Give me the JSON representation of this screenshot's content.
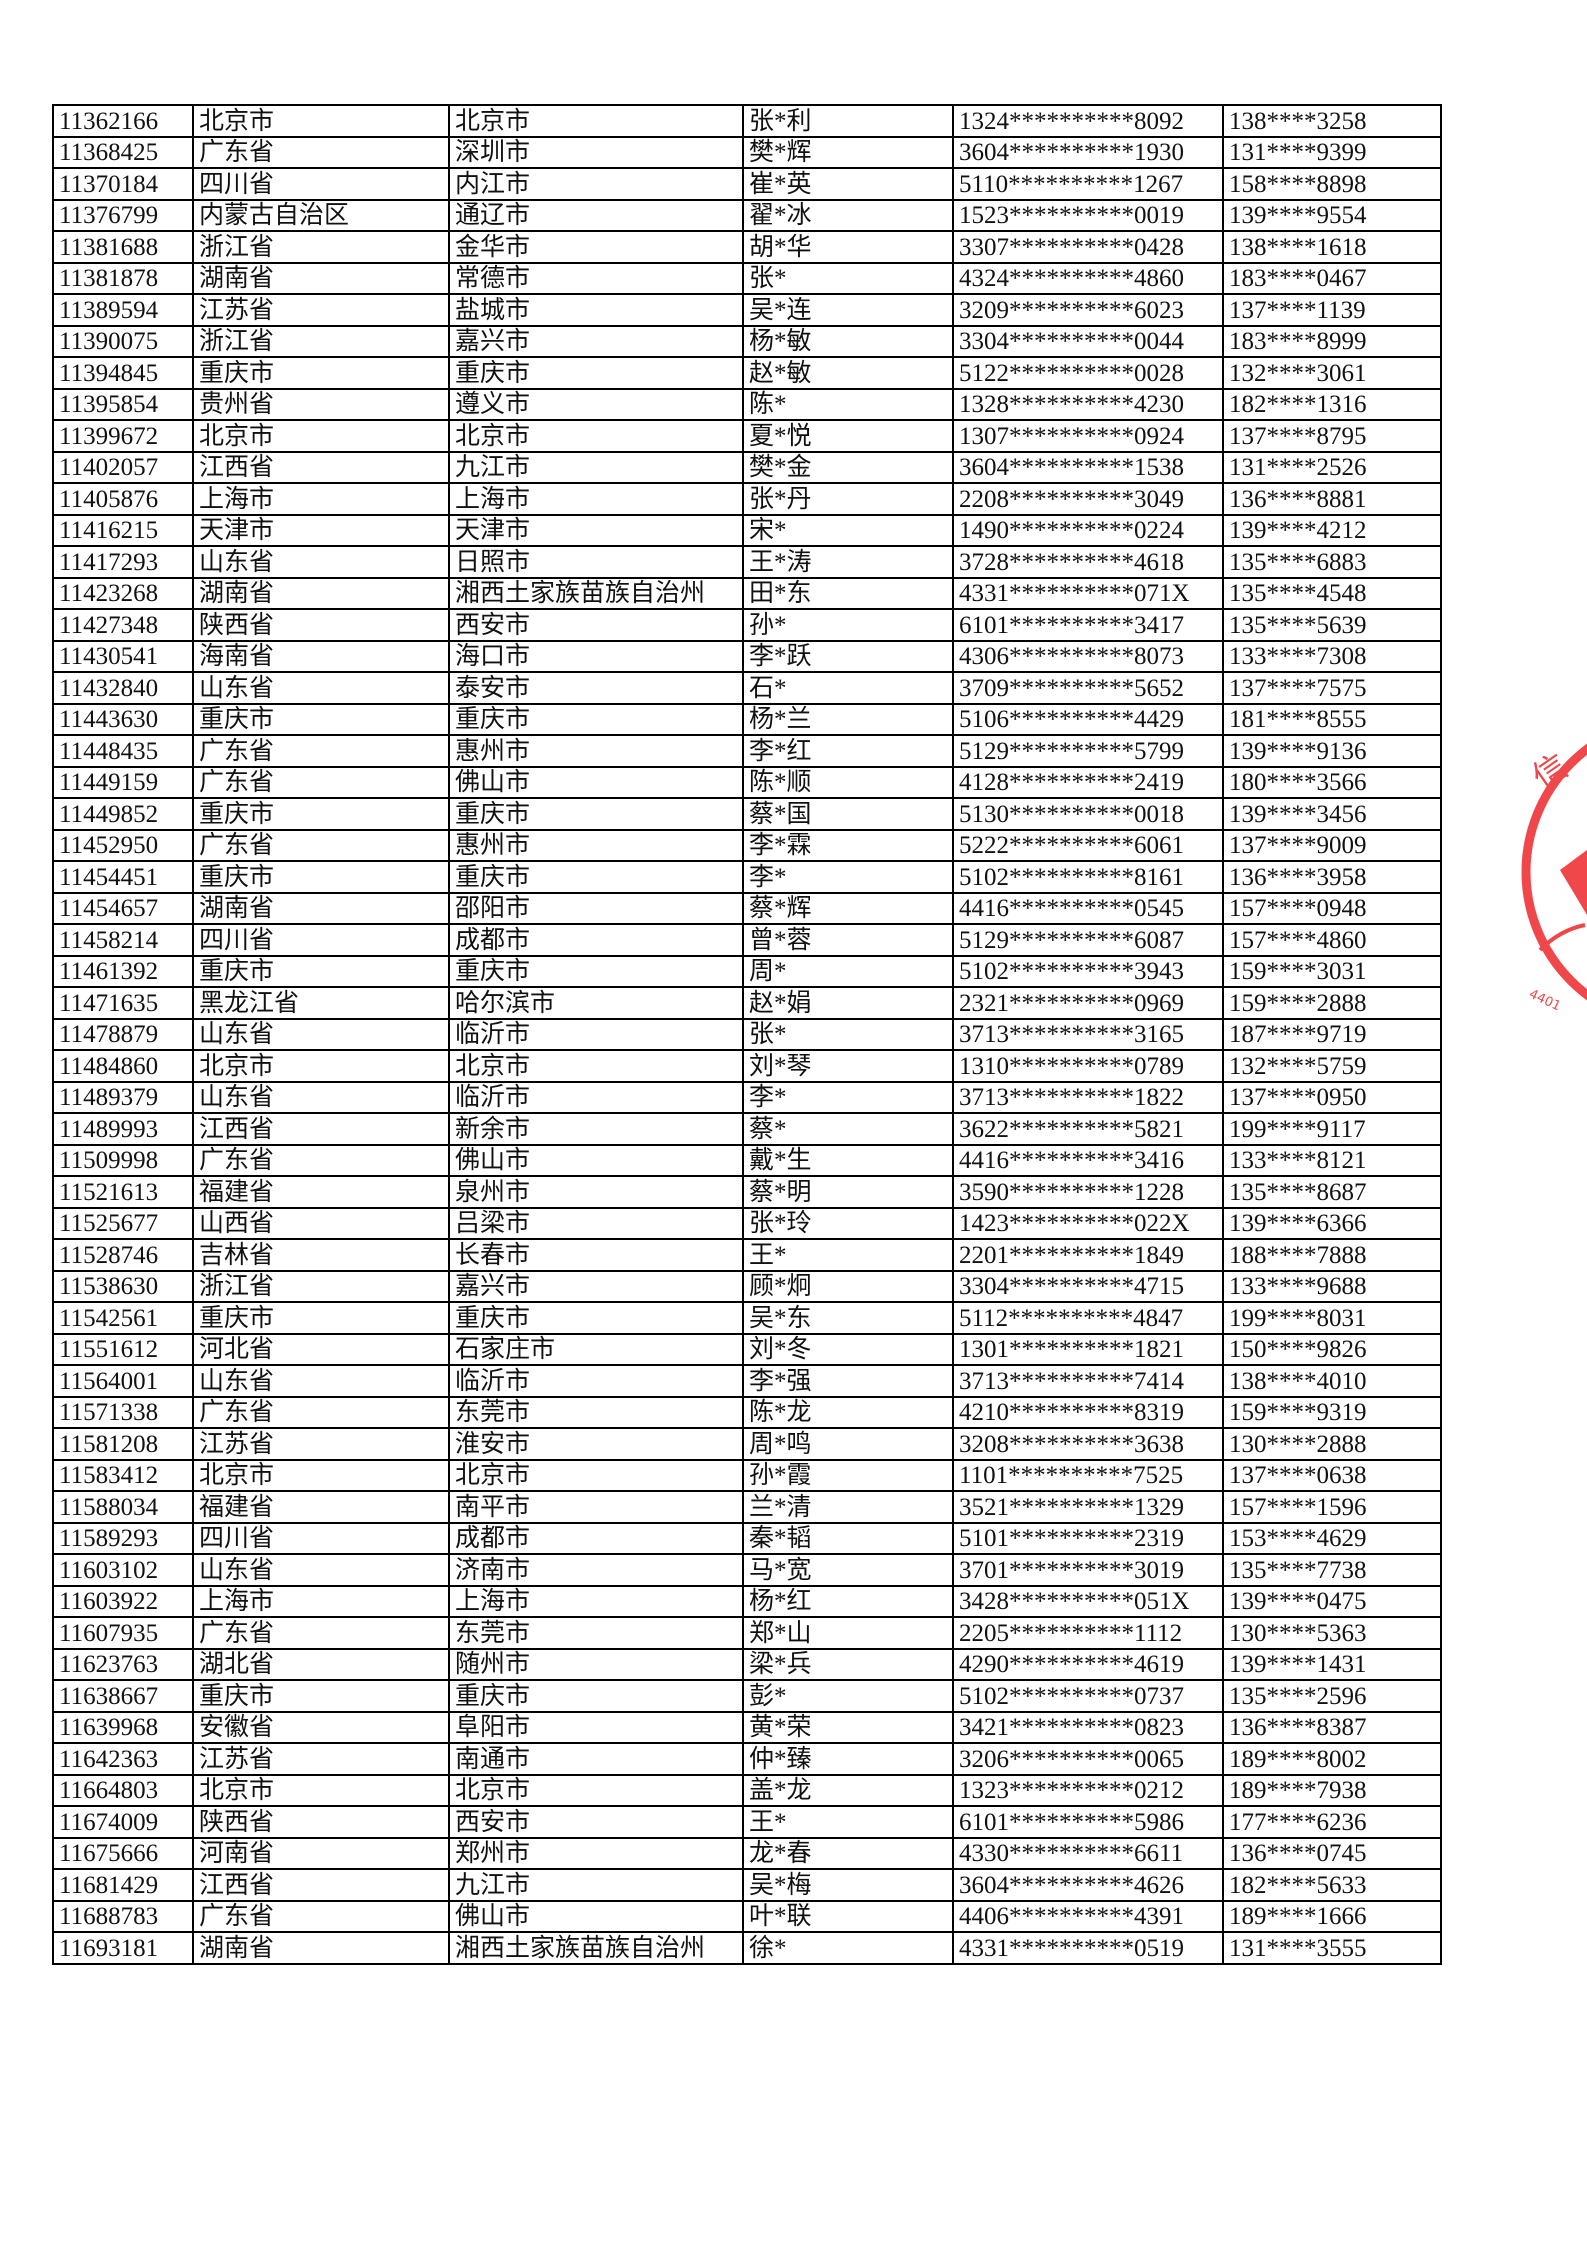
{
  "stamp": {
    "color": "#f0474a",
    "visible_text": [
      "信",
      "4401"
    ]
  },
  "rows": [
    [
      "11362166",
      "北京市",
      "北京市",
      "张*利",
      "1324**********8092",
      "138****3258"
    ],
    [
      "11368425",
      "广东省",
      "深圳市",
      "樊*辉",
      "3604**********1930",
      "131****9399"
    ],
    [
      "11370184",
      "四川省",
      "内江市",
      "崔*英",
      "5110**********1267",
      "158****8898"
    ],
    [
      "11376799",
      "内蒙古自治区",
      "通辽市",
      "翟*冰",
      "1523**********0019",
      "139****9554"
    ],
    [
      "11381688",
      "浙江省",
      "金华市",
      "胡*华",
      "3307**********0428",
      "138****1618"
    ],
    [
      "11381878",
      "湖南省",
      "常德市",
      "张*",
      "4324**********4860",
      "183****0467"
    ],
    [
      "11389594",
      "江苏省",
      "盐城市",
      "吴*连",
      "3209**********6023",
      "137****1139"
    ],
    [
      "11390075",
      "浙江省",
      "嘉兴市",
      "杨*敏",
      "3304**********0044",
      "183****8999"
    ],
    [
      "11394845",
      "重庆市",
      "重庆市",
      "赵*敏",
      "5122**********0028",
      "132****3061"
    ],
    [
      "11395854",
      "贵州省",
      "遵义市",
      "陈*",
      "1328**********4230",
      "182****1316"
    ],
    [
      "11399672",
      "北京市",
      "北京市",
      "夏*悦",
      "1307**********0924",
      "137****8795"
    ],
    [
      "11402057",
      "江西省",
      "九江市",
      "樊*金",
      "3604**********1538",
      "131****2526"
    ],
    [
      "11405876",
      "上海市",
      "上海市",
      "张*丹",
      "2208**********3049",
      "136****8881"
    ],
    [
      "11416215",
      "天津市",
      "天津市",
      "宋*",
      "1490**********0224",
      "139****4212"
    ],
    [
      "11417293",
      "山东省",
      "日照市",
      "王*涛",
      "3728**********4618",
      "135****6883"
    ],
    [
      "11423268",
      "湖南省",
      "湘西土家族苗族自治州",
      "田*东",
      "4331**********071X",
      "135****4548"
    ],
    [
      "11427348",
      "陕西省",
      "西安市",
      "孙*",
      "6101**********3417",
      "135****5639"
    ],
    [
      "11430541",
      "海南省",
      "海口市",
      "李*跃",
      "4306**********8073",
      "133****7308"
    ],
    [
      "11432840",
      "山东省",
      "泰安市",
      "石*",
      "3709**********5652",
      "137****7575"
    ],
    [
      "11443630",
      "重庆市",
      "重庆市",
      "杨*兰",
      "5106**********4429",
      "181****8555"
    ],
    [
      "11448435",
      "广东省",
      "惠州市",
      "李*红",
      "5129**********5799",
      "139****9136"
    ],
    [
      "11449159",
      "广东省",
      "佛山市",
      "陈*顺",
      "4128**********2419",
      "180****3566"
    ],
    [
      "11449852",
      "重庆市",
      "重庆市",
      "蔡*国",
      "5130**********0018",
      "139****3456"
    ],
    [
      "11452950",
      "广东省",
      "惠州市",
      "李*霖",
      "5222**********6061",
      "137****9009"
    ],
    [
      "11454451",
      "重庆市",
      "重庆市",
      "李*",
      "5102**********8161",
      "136****3958"
    ],
    [
      "11454657",
      "湖南省",
      "邵阳市",
      "蔡*辉",
      "4416**********0545",
      "157****0948"
    ],
    [
      "11458214",
      "四川省",
      "成都市",
      "曾*蓉",
      "5129**********6087",
      "157****4860"
    ],
    [
      "11461392",
      "重庆市",
      "重庆市",
      "周*",
      "5102**********3943",
      "159****3031"
    ],
    [
      "11471635",
      "黑龙江省",
      "哈尔滨市",
      "赵*娟",
      "2321**********0969",
      "159****2888"
    ],
    [
      "11478879",
      "山东省",
      "临沂市",
      "张*",
      "3713**********3165",
      "187****9719"
    ],
    [
      "11484860",
      "北京市",
      "北京市",
      "刘*琴",
      "1310**********0789",
      "132****5759"
    ],
    [
      "11489379",
      "山东省",
      "临沂市",
      "李*",
      "3713**********1822",
      "137****0950"
    ],
    [
      "11489993",
      "江西省",
      "新余市",
      "蔡*",
      "3622**********5821",
      "199****9117"
    ],
    [
      "11509998",
      "广东省",
      "佛山市",
      "戴*生",
      "4416**********3416",
      "133****8121"
    ],
    [
      "11521613",
      "福建省",
      "泉州市",
      "蔡*明",
      "3590**********1228",
      "135****8687"
    ],
    [
      "11525677",
      "山西省",
      "吕梁市",
      "张*玲",
      "1423**********022X",
      "139****6366"
    ],
    [
      "11528746",
      "吉林省",
      "长春市",
      "王*",
      "2201**********1849",
      "188****7888"
    ],
    [
      "11538630",
      "浙江省",
      "嘉兴市",
      "顾*炯",
      "3304**********4715",
      "133****9688"
    ],
    [
      "11542561",
      "重庆市",
      "重庆市",
      "吴*东",
      "5112**********4847",
      "199****8031"
    ],
    [
      "11551612",
      "河北省",
      "石家庄市",
      "刘*冬",
      "1301**********1821",
      "150****9826"
    ],
    [
      "11564001",
      "山东省",
      "临沂市",
      "李*强",
      "3713**********7414",
      "138****4010"
    ],
    [
      "11571338",
      "广东省",
      "东莞市",
      "陈*龙",
      "4210**********8319",
      "159****9319"
    ],
    [
      "11581208",
      "江苏省",
      "淮安市",
      "周*鸣",
      "3208**********3638",
      "130****2888"
    ],
    [
      "11583412",
      "北京市",
      "北京市",
      "孙*霞",
      "1101**********7525",
      "137****0638"
    ],
    [
      "11588034",
      "福建省",
      "南平市",
      "兰*清",
      "3521**********1329",
      "157****1596"
    ],
    [
      "11589293",
      "四川省",
      "成都市",
      "秦*韬",
      "5101**********2319",
      "153****4629"
    ],
    [
      "11603102",
      "山东省",
      "济南市",
      "马*宽",
      "3701**********3019",
      "135****7738"
    ],
    [
      "11603922",
      "上海市",
      "上海市",
      "杨*红",
      "3428**********051X",
      "139****0475"
    ],
    [
      "11607935",
      "广东省",
      "东莞市",
      "郑*山",
      "2205**********1112",
      "130****5363"
    ],
    [
      "11623763",
      "湖北省",
      "随州市",
      "梁*兵",
      "4290**********4619",
      "139****1431"
    ],
    [
      "11638667",
      "重庆市",
      "重庆市",
      "彭*",
      "5102**********0737",
      "135****2596"
    ],
    [
      "11639968",
      "安徽省",
      "阜阳市",
      "黄*荣",
      "3421**********0823",
      "136****8387"
    ],
    [
      "11642363",
      "江苏省",
      "南通市",
      "仲*臻",
      "3206**********0065",
      "189****8002"
    ],
    [
      "11664803",
      "北京市",
      "北京市",
      "盖*龙",
      "1323**********0212",
      "189****7938"
    ],
    [
      "11674009",
      "陕西省",
      "西安市",
      "王*",
      "6101**********5986",
      "177****6236"
    ],
    [
      "11675666",
      "河南省",
      "郑州市",
      "龙*春",
      "4330**********6611",
      "136****0745"
    ],
    [
      "11681429",
      "江西省",
      "九江市",
      "吴*梅",
      "3604**********4626",
      "182****5633"
    ],
    [
      "11688783",
      "广东省",
      "佛山市",
      "叶*联",
      "4406**********4391",
      "189****1666"
    ],
    [
      "11693181",
      "湖南省",
      "湘西土家族苗族自治州",
      "徐*",
      "4331**********0519",
      "131****3555"
    ]
  ]
}
